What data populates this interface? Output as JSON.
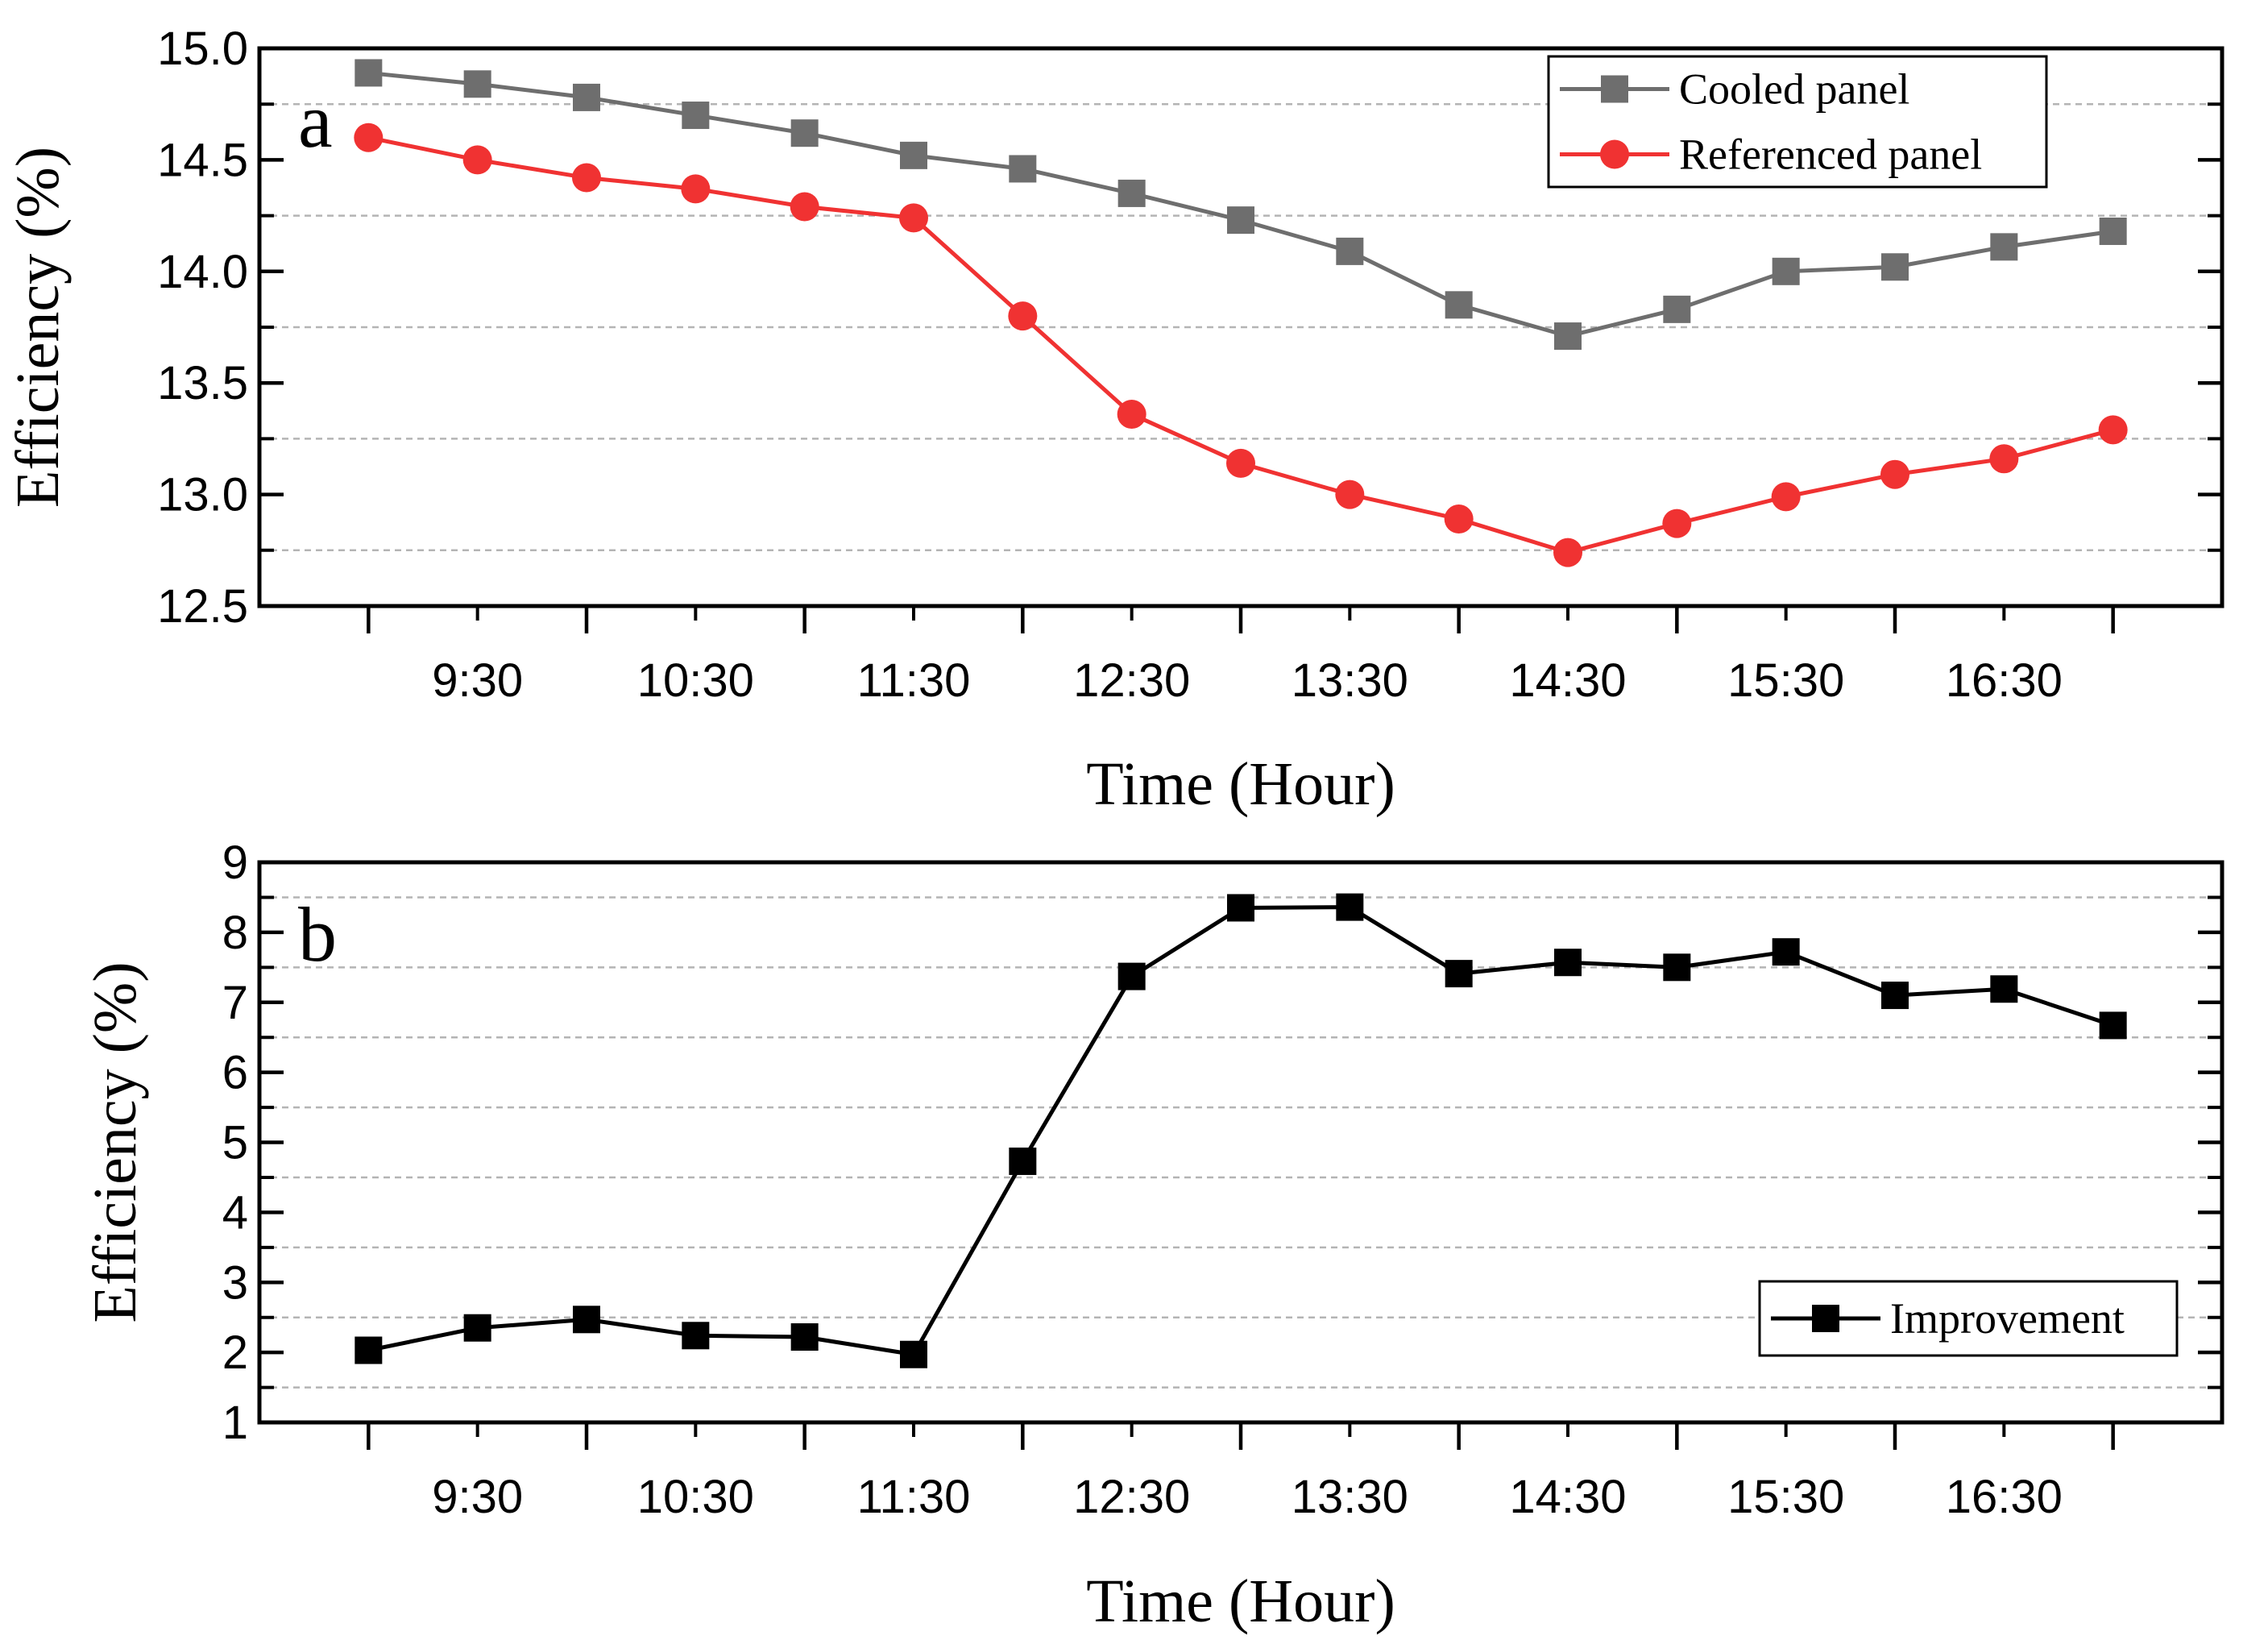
{
  "chart_data": [
    {
      "id": "a",
      "type": "line",
      "panel_label": "a",
      "xlabel": "Time (Hour)",
      "ylabel": "Efficiency (%)",
      "ylim": [
        12.5,
        15.0
      ],
      "yticks": [
        "12.5",
        "13.0",
        "13.5",
        "14.0",
        "14.5",
        "15.0"
      ],
      "xtick_labels": [
        "9:30",
        "10:30",
        "11:30",
        "12:30",
        "13:30",
        "14:30",
        "15:30",
        "16:30"
      ],
      "minor_grid": true,
      "legend_position": "top-right",
      "x": [
        9.0,
        9.5,
        10.0,
        10.5,
        11.0,
        11.5,
        12.0,
        12.5,
        13.0,
        13.5,
        14.0,
        14.5,
        15.0,
        15.5,
        16.0,
        16.5,
        17.0
      ],
      "series": [
        {
          "name": "Cooled panel",
          "color": "#6e6e6e",
          "marker": "square",
          "values": [
            14.89,
            14.84,
            14.78,
            14.7,
            14.62,
            14.52,
            14.46,
            14.35,
            14.23,
            14.09,
            13.85,
            13.71,
            13.83,
            14.0,
            14.02,
            14.11,
            14.18
          ]
        },
        {
          "name": "Referenced panel",
          "color": "#f03232",
          "marker": "circle",
          "values": [
            14.6,
            14.5,
            14.42,
            14.37,
            14.29,
            14.24,
            13.8,
            13.36,
            13.14,
            13.0,
            12.89,
            12.74,
            12.87,
            12.99,
            13.09,
            13.16,
            13.29
          ]
        }
      ]
    },
    {
      "id": "b",
      "type": "line",
      "panel_label": "b",
      "xlabel": "Time (Hour)",
      "ylabel": "Efficiency (%)",
      "ylim": [
        1,
        9
      ],
      "yticks": [
        "1",
        "2",
        "3",
        "4",
        "5",
        "6",
        "7",
        "8",
        "9"
      ],
      "xtick_labels": [
        "9:30",
        "10:30",
        "11:30",
        "12:30",
        "13:30",
        "14:30",
        "15:30",
        "16:30"
      ],
      "minor_grid": true,
      "legend_position": "bottom-right",
      "x": [
        9.0,
        9.5,
        10.0,
        10.5,
        11.0,
        11.5,
        12.0,
        12.5,
        13.0,
        13.5,
        14.0,
        14.5,
        15.0,
        15.5,
        16.0,
        16.5,
        17.0
      ],
      "series": [
        {
          "name": "Improvement",
          "color": "#000000",
          "marker": "square",
          "values": [
            2.03,
            2.35,
            2.47,
            2.24,
            2.22,
            1.97,
            4.73,
            7.37,
            8.35,
            8.36,
            7.41,
            7.57,
            7.5,
            7.72,
            7.1,
            7.19,
            6.67
          ]
        }
      ]
    }
  ]
}
